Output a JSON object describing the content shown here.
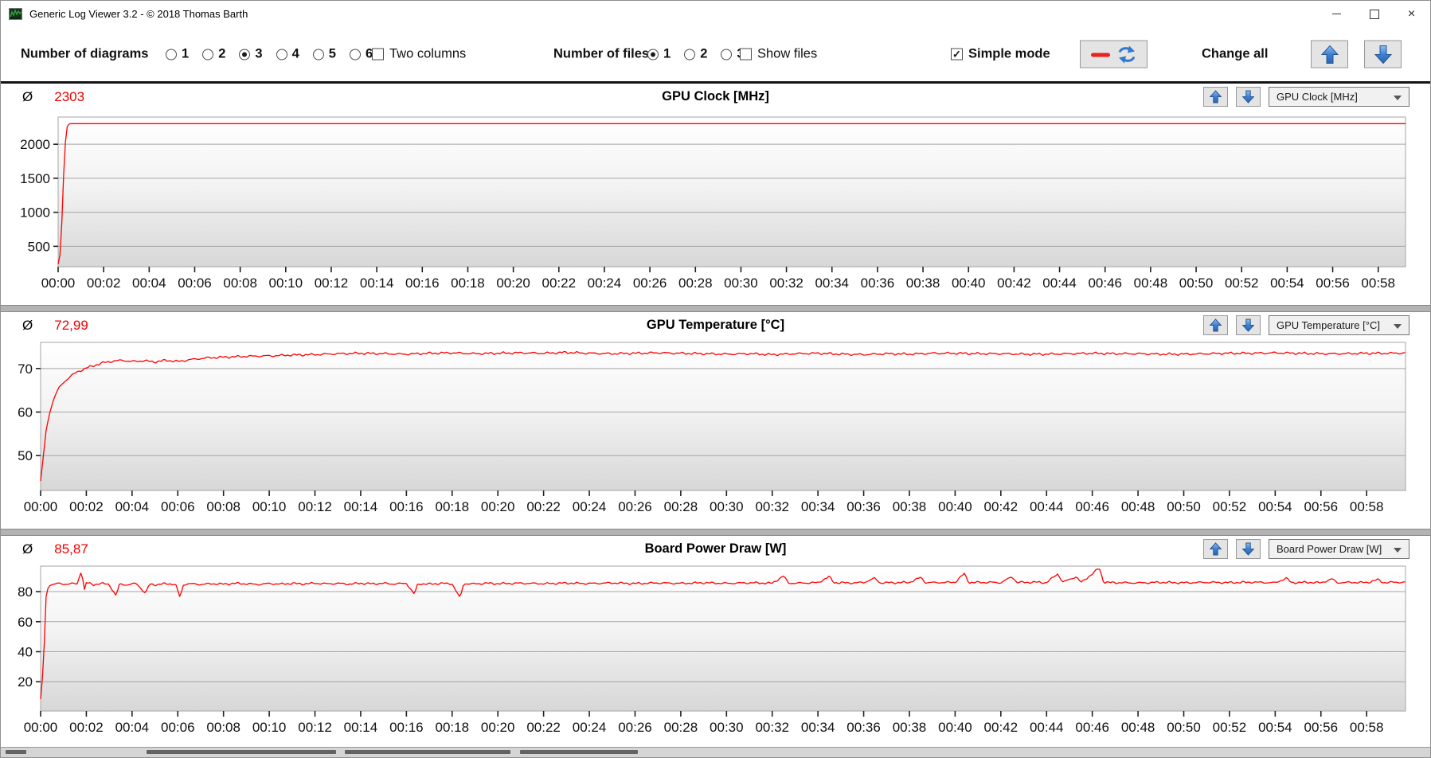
{
  "window": {
    "title": "Generic Log Viewer 3.2 - © 2018 Thomas Barth",
    "controls": {
      "close_glyph": "×"
    }
  },
  "toolbar": {
    "diagrams": {
      "label": "Number of diagrams",
      "options": [
        "1",
        "2",
        "3",
        "4",
        "5",
        "6"
      ],
      "selected": "3"
    },
    "two_columns": {
      "label": "Two columns",
      "checked": false
    },
    "files": {
      "label": "Number of files",
      "options": [
        "1",
        "2",
        "3"
      ],
      "selected": "1"
    },
    "show_files": {
      "label": "Show files",
      "checked": false
    },
    "simple_mode": {
      "label": "Simple mode",
      "checked": true
    },
    "legend_button": {
      "icons": [
        "red-line-sample-icon",
        "sync-arrows-icon"
      ]
    },
    "change_all": {
      "label": "Change all",
      "icons": [
        "arrow-up-icon",
        "arrow-down-icon"
      ]
    },
    "check_glyph": "✓"
  },
  "chart_data": [
    {
      "type": "line",
      "title": "GPU Clock [MHz]",
      "avg_symbol": "Ø",
      "average_display": "2303",
      "average": 2303,
      "dropdown_value": "GPU Clock [MHz]",
      "color": "#ff0000",
      "xlim": [
        0,
        59.2
      ],
      "ylim": [
        200,
        2400
      ],
      "yticks": [
        500,
        1000,
        1500,
        2000
      ],
      "xtick_step_min": 2,
      "xtick_labels": [
        "00:00",
        "00:02",
        "00:04",
        "00:06",
        "00:08",
        "00:10",
        "00:12",
        "00:14",
        "00:16",
        "00:18",
        "00:20",
        "00:22",
        "00:24",
        "00:26",
        "00:28",
        "00:30",
        "00:32",
        "00:34",
        "00:36",
        "00:38",
        "00:40",
        "00:42",
        "00:44",
        "00:46",
        "00:48",
        "00:50",
        "00:52",
        "00:54",
        "00:56",
        "00:58"
      ],
      "grid": true,
      "noise_amp": 0,
      "anchors": [
        [
          0,
          240
        ],
        [
          0.06,
          265
        ],
        [
          0.15,
          750
        ],
        [
          0.28,
          1900
        ],
        [
          0.4,
          2260
        ],
        [
          0.5,
          2303
        ],
        [
          60.3,
          2303
        ]
      ]
    },
    {
      "type": "line",
      "title": "GPU Temperature [°C]",
      "avg_symbol": "Ø",
      "average_display": "72,99",
      "average": 72.99,
      "dropdown_value": "GPU Temperature [°C]",
      "color": "#ff0000",
      "xlim": [
        0,
        59.7
      ],
      "ylim": [
        42,
        76
      ],
      "yticks": [
        50,
        60,
        70
      ],
      "xtick_step_min": 2,
      "xtick_labels": [
        "00:00",
        "00:02",
        "00:04",
        "00:06",
        "00:08",
        "00:10",
        "00:12",
        "00:14",
        "00:16",
        "00:18",
        "00:20",
        "00:22",
        "00:24",
        "00:26",
        "00:28",
        "00:30",
        "00:32",
        "00:34",
        "00:36",
        "00:38",
        "00:40",
        "00:42",
        "00:44",
        "00:46",
        "00:48",
        "00:50",
        "00:52",
        "00:54",
        "00:56",
        "00:58"
      ],
      "grid": true,
      "noise_amp": 0.32,
      "anchors": [
        [
          0,
          44
        ],
        [
          0.12,
          50
        ],
        [
          0.25,
          56
        ],
        [
          0.4,
          60
        ],
        [
          0.6,
          63.5
        ],
        [
          0.8,
          65.5
        ],
        [
          1,
          66.8
        ],
        [
          1.3,
          68.2
        ],
        [
          1.6,
          69.2
        ],
        [
          2,
          70.1
        ],
        [
          2.4,
          70.8
        ],
        [
          2.8,
          71.4
        ],
        [
          3.2,
          71.7
        ],
        [
          3.6,
          71.9
        ],
        [
          4,
          71.6
        ],
        [
          4.5,
          71.8
        ],
        [
          5,
          71.5
        ],
        [
          5.5,
          71.9
        ],
        [
          6,
          71.6
        ],
        [
          6.5,
          72
        ],
        [
          7,
          72.3
        ],
        [
          7.5,
          72.5
        ],
        [
          8,
          72.6
        ],
        [
          9,
          72.8
        ],
        [
          10,
          72.9
        ],
        [
          11,
          73.1
        ],
        [
          12,
          73.2
        ],
        [
          13,
          73.4
        ],
        [
          14,
          73.5
        ],
        [
          15,
          73.4
        ],
        [
          16,
          73.3
        ],
        [
          17,
          73.5
        ],
        [
          18,
          73.6
        ],
        [
          19,
          73.4
        ],
        [
          20,
          73.5
        ],
        [
          21,
          73.6
        ],
        [
          22,
          73.5
        ],
        [
          23,
          73.7
        ],
        [
          24,
          73.5
        ],
        [
          25,
          73.4
        ],
        [
          26,
          73.5
        ],
        [
          27,
          73.6
        ],
        [
          28,
          73.5
        ],
        [
          29,
          73.4
        ],
        [
          30,
          73.3
        ],
        [
          31,
          73.4
        ],
        [
          32,
          73.2
        ],
        [
          33,
          73.4
        ],
        [
          34,
          73.5
        ],
        [
          35,
          73.3
        ],
        [
          36,
          73.2
        ],
        [
          37,
          73.4
        ],
        [
          38,
          73.3
        ],
        [
          39,
          73.5
        ],
        [
          40,
          73.5
        ],
        [
          41,
          73.4
        ],
        [
          42,
          73.4
        ],
        [
          43,
          73.3
        ],
        [
          44,
          73.3
        ],
        [
          45,
          73.4
        ],
        [
          46,
          73.5
        ],
        [
          47,
          73.4
        ],
        [
          48,
          73.4
        ],
        [
          49,
          73.3
        ],
        [
          50,
          73.3
        ],
        [
          51,
          73.4
        ],
        [
          52,
          73.5
        ],
        [
          53,
          73.5
        ],
        [
          54,
          73.6
        ],
        [
          55,
          73.5
        ],
        [
          56,
          73.4
        ],
        [
          57,
          73.4
        ],
        [
          58,
          73.5
        ],
        [
          59,
          73.5
        ],
        [
          60.3,
          73.6
        ]
      ]
    },
    {
      "type": "line",
      "title": "Board Power Draw [W]",
      "avg_symbol": "Ø",
      "average_display": "85,87",
      "average": 85.87,
      "dropdown_value": "Board Power Draw [W]",
      "color": "#ff0000",
      "xlim": [
        0,
        59.7
      ],
      "ylim": [
        0.5,
        97
      ],
      "yticks": [
        20,
        40,
        60,
        80
      ],
      "xtick_step_min": 2,
      "xtick_labels": [
        "00:00",
        "00:02",
        "00:04",
        "00:06",
        "00:08",
        "00:10",
        "00:12",
        "00:14",
        "00:16",
        "00:18",
        "00:20",
        "00:22",
        "00:24",
        "00:26",
        "00:28",
        "00:30",
        "00:32",
        "00:34",
        "00:36",
        "00:38",
        "00:40",
        "00:42",
        "00:44",
        "00:46",
        "00:48",
        "00:50",
        "00:52",
        "00:54",
        "00:56",
        "00:58"
      ],
      "grid": true,
      "noise_amp": 0.85,
      "anchors": [
        [
          0,
          8
        ],
        [
          0.12,
          30
        ],
        [
          0.25,
          80
        ],
        [
          0.4,
          84.5
        ],
        [
          0.7,
          85.5
        ],
        [
          1,
          84.8
        ],
        [
          1.3,
          85.5
        ],
        [
          1.6,
          85
        ],
        [
          1.8,
          95
        ],
        [
          1.9,
          80
        ],
        [
          2,
          86
        ],
        [
          2.3,
          84.5
        ],
        [
          2.6,
          85.5
        ],
        [
          3,
          84.8
        ],
        [
          3.3,
          77
        ],
        [
          3.45,
          85
        ],
        [
          3.8,
          84.5
        ],
        [
          4.2,
          85.5
        ],
        [
          4.6,
          78.5
        ],
        [
          4.75,
          85
        ],
        [
          5.1,
          84.6
        ],
        [
          5.5,
          85.4
        ],
        [
          5.9,
          84.8
        ],
        [
          6.1,
          76
        ],
        [
          6.25,
          85
        ],
        [
          6.6,
          85.2
        ],
        [
          7,
          84.8
        ],
        [
          7.5,
          85.3
        ],
        [
          8,
          85
        ],
        [
          8.5,
          85.5
        ],
        [
          9,
          85.2
        ],
        [
          9.5,
          84.8
        ],
        [
          10,
          85.4
        ],
        [
          10.5,
          85
        ],
        [
          11,
          85.5
        ],
        [
          11.5,
          85.1
        ],
        [
          12,
          85.6
        ],
        [
          12.5,
          85.2
        ],
        [
          13,
          85.5
        ],
        [
          13.5,
          85
        ],
        [
          14,
          85.6
        ],
        [
          14.5,
          85.2
        ],
        [
          15,
          85.5
        ],
        [
          15.5,
          85.1
        ],
        [
          16,
          85.6
        ],
        [
          16.35,
          78
        ],
        [
          16.5,
          85.3
        ],
        [
          17,
          85
        ],
        [
          17.5,
          85.5
        ],
        [
          18,
          85.2
        ],
        [
          18.35,
          75.5
        ],
        [
          18.5,
          85.4
        ],
        [
          19,
          85.1
        ],
        [
          19.5,
          85.6
        ],
        [
          20,
          85.3
        ],
        [
          21,
          85.6
        ],
        [
          22,
          85.3
        ],
        [
          23,
          85.7
        ],
        [
          24,
          85.4
        ],
        [
          25,
          85.8
        ],
        [
          26,
          85.4
        ],
        [
          27,
          85.8
        ],
        [
          28,
          85.5
        ],
        [
          29,
          85.9
        ],
        [
          30,
          85.5
        ],
        [
          31,
          85.9
        ],
        [
          32,
          85.6
        ],
        [
          32.5,
          90.5
        ],
        [
          32.7,
          85.8
        ],
        [
          33,
          85.6
        ],
        [
          34,
          86
        ],
        [
          34.5,
          90
        ],
        [
          34.7,
          86
        ],
        [
          35.5,
          85.8
        ],
        [
          36,
          86.1
        ],
        [
          36.5,
          89
        ],
        [
          36.7,
          85.9
        ],
        [
          37.5,
          86
        ],
        [
          38,
          86.2
        ],
        [
          38.5,
          89.5
        ],
        [
          38.7,
          86
        ],
        [
          39.5,
          86.1
        ],
        [
          40,
          86.3
        ],
        [
          40.4,
          92
        ],
        [
          40.6,
          86.1
        ],
        [
          41.5,
          86.2
        ],
        [
          42,
          86
        ],
        [
          42.5,
          90
        ],
        [
          42.7,
          86.1
        ],
        [
          43.5,
          86.3
        ],
        [
          44,
          86
        ],
        [
          44.5,
          92
        ],
        [
          44.7,
          86.2
        ],
        [
          45.3,
          90
        ],
        [
          45.5,
          86
        ],
        [
          46.1,
          93
        ],
        [
          46.3,
          96
        ],
        [
          46.5,
          86.2
        ],
        [
          47,
          86
        ],
        [
          48,
          85.8
        ],
        [
          49,
          86.2
        ],
        [
          50,
          85.9
        ],
        [
          51,
          86.2
        ],
        [
          52,
          86
        ],
        [
          53,
          86.3
        ],
        [
          54,
          85.9
        ],
        [
          54.5,
          89
        ],
        [
          54.7,
          86
        ],
        [
          55.5,
          86.2
        ],
        [
          56,
          85.9
        ],
        [
          56.5,
          88.5
        ],
        [
          56.7,
          86
        ],
        [
          57.5,
          86.2
        ],
        [
          58,
          86
        ],
        [
          58.5,
          88
        ],
        [
          58.7,
          86.1
        ],
        [
          59.5,
          86.3
        ],
        [
          60.3,
          86
        ]
      ]
    }
  ]
}
